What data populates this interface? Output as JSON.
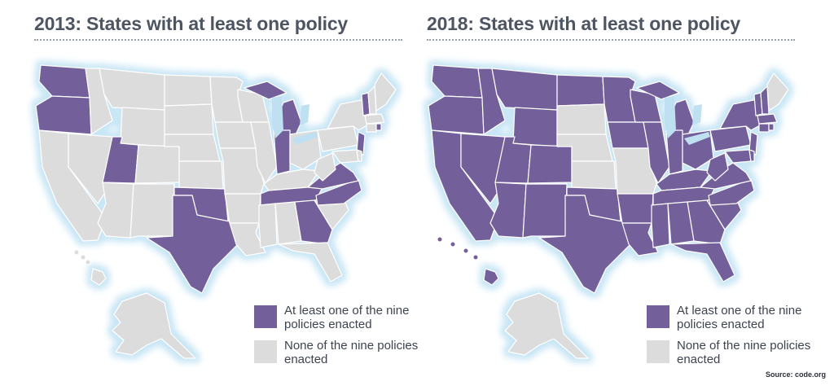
{
  "colors": {
    "enacted": "#735f9a",
    "none": "#dcdcdc",
    "border": "#ffffff",
    "glow": "#c8e6f5",
    "water": "#bfe0f0"
  },
  "maps": [
    {
      "title": "2013: States with at least one policy",
      "legend": [
        {
          "label": "At least one of the nine policies enacted",
          "status": "enacted"
        },
        {
          "label": "None of the nine policies enacted",
          "status": "none"
        }
      ]
    },
    {
      "title": "2018: States with at least one policy",
      "legend": [
        {
          "label": "At least one of the nine policies enacted",
          "status": "enacted"
        },
        {
          "label": "None of the nine policies enacted",
          "status": "none"
        }
      ]
    }
  ],
  "source": "Source: code.org"
}
